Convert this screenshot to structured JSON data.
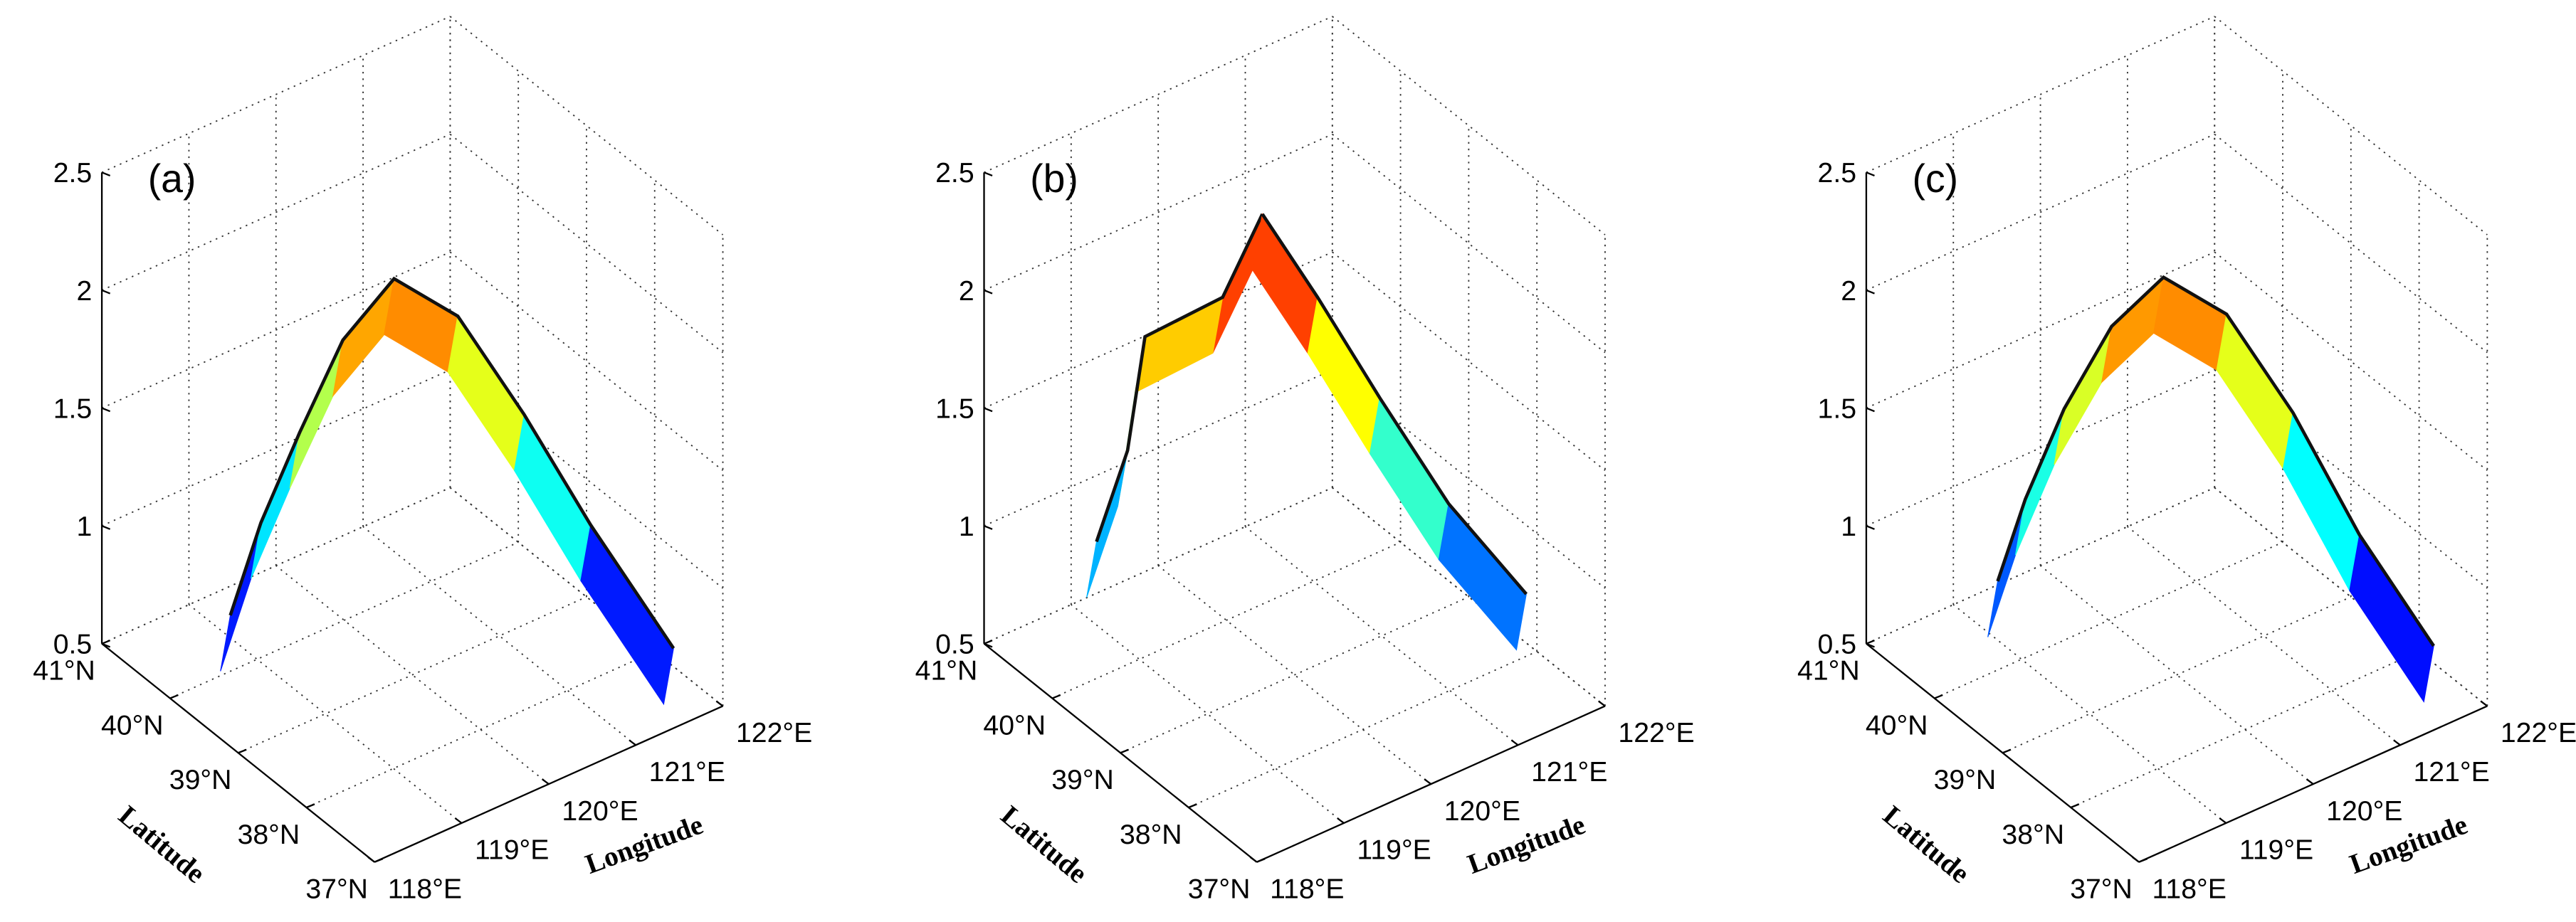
{
  "chart_data": [
    {
      "type": "surface3d",
      "panel_label": "(a)",
      "xlabel": "Longitude",
      "ylabel": "Latitude",
      "colormap": "jet",
      "grid": true,
      "xlim": [
        118,
        122
      ],
      "ylim": [
        37,
        41
      ],
      "zlim": [
        0.5,
        2.5
      ],
      "xticks": [
        {
          "value": 118,
          "label": "118°E"
        },
        {
          "value": 119,
          "label": "119°E"
        },
        {
          "value": 120,
          "label": "120°E"
        },
        {
          "value": 121,
          "label": "121°E"
        },
        {
          "value": 122,
          "label": "122°E"
        }
      ],
      "yticks": [
        {
          "value": 37,
          "label": "37°N"
        },
        {
          "value": 38,
          "label": "38°N"
        },
        {
          "value": 39,
          "label": "39°N"
        },
        {
          "value": 40,
          "label": "40°N"
        },
        {
          "value": 41,
          "label": "41°N"
        }
      ],
      "zticks": [
        0.5,
        1,
        1.5,
        2,
        2.5
      ],
      "series": [
        {
          "x": [
            118.99,
            119.2,
            119.45,
            119.75,
            120.15,
            120.6,
            121.05,
            121.5,
            122.06
          ],
          "y": [
            40.38,
            40.2,
            39.95,
            39.7,
            39.46,
            39.1,
            38.7,
            38.3,
            37.8
          ],
          "z": [
            0.6,
            1.0,
            1.4,
            1.8,
            2.05,
            1.9,
            1.5,
            1.05,
            0.55
          ]
        }
      ]
    },
    {
      "type": "surface3d",
      "panel_label": "(b)",
      "xlabel": "Longitude",
      "ylabel": "Latitude",
      "colormap": "jet",
      "grid": true,
      "xlim": [
        118,
        122
      ],
      "ylim": [
        37,
        41
      ],
      "zlim": [
        0.5,
        2.5
      ],
      "xticks": [
        {
          "value": 118,
          "label": "118°E"
        },
        {
          "value": 119,
          "label": "119°E"
        },
        {
          "value": 120,
          "label": "120°E"
        },
        {
          "value": 121,
          "label": "121°E"
        },
        {
          "value": 122,
          "label": "122°E"
        }
      ],
      "yticks": [
        {
          "value": 37,
          "label": "37°N"
        },
        {
          "value": 38,
          "label": "38°N"
        },
        {
          "value": 39,
          "label": "39°N"
        },
        {
          "value": 40,
          "label": "40°N"
        },
        {
          "value": 41,
          "label": "41°N"
        }
      ],
      "zticks": [
        0.5,
        1,
        1.5,
        2,
        2.5
      ],
      "series": [
        {
          "x": [
            120.1,
            119.8,
            119.3,
            119.1,
            118.9
          ],
          "y": [
            39.6,
            39.8,
            40.3,
            40.3,
            40.5
          ],
          "z": [
            2.3,
            1.95,
            1.75,
            1.3,
            0.9
          ]
        },
        {
          "x": [
            120.1,
            120.5,
            120.9,
            121.3,
            121.8
          ],
          "y": [
            39.6,
            39.3,
            38.9,
            38.4,
            37.9
          ],
          "z": [
            2.3,
            1.95,
            1.55,
            1.15,
            0.8
          ]
        }
      ]
    },
    {
      "type": "surface3d",
      "panel_label": "(c)",
      "xlabel": "Longitude",
      "ylabel": "Latitude",
      "colormap": "jet",
      "grid": true,
      "xlim": [
        118,
        122
      ],
      "ylim": [
        37,
        41
      ],
      "zlim": [
        0.5,
        2.5
      ],
      "xticks": [
        {
          "value": 118,
          "label": "118°E"
        },
        {
          "value": 119,
          "label": "119°E"
        },
        {
          "value": 120,
          "label": "120°E"
        },
        {
          "value": 121,
          "label": "121°E"
        },
        {
          "value": 122,
          "label": "122°E"
        }
      ],
      "yticks": [
        {
          "value": 37,
          "label": "37°N"
        },
        {
          "value": 38,
          "label": "38°N"
        },
        {
          "value": 39,
          "label": "39°N"
        },
        {
          "value": 40,
          "label": "40°N"
        },
        {
          "value": 41,
          "label": "41°N"
        }
      ],
      "zticks": [
        0.5,
        1,
        1.5,
        2,
        2.5
      ],
      "series": [
        {
          "x": [
            119.0,
            119.2,
            119.45,
            119.8,
            120.2,
            120.65,
            121.1,
            121.55,
            122.05
          ],
          "y": [
            40.35,
            40.2,
            39.95,
            39.7,
            39.45,
            39.1,
            38.7,
            38.3,
            37.85
          ],
          "z": [
            0.75,
            1.1,
            1.5,
            1.85,
            2.05,
            1.9,
            1.5,
            1.0,
            0.55
          ]
        }
      ]
    }
  ]
}
